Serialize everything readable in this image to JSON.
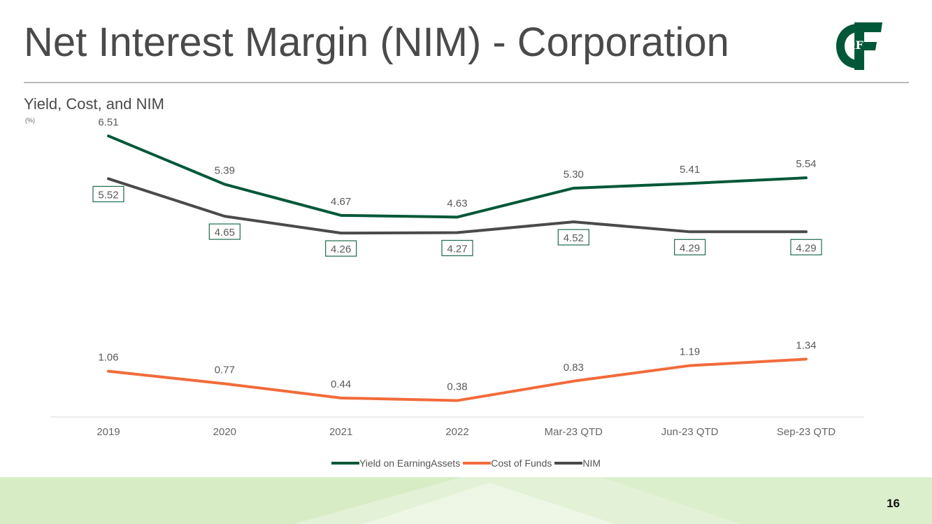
{
  "slide": {
    "title": "Net Interest Margin (NIM) - Corporation",
    "subtitle": "Yield, Cost, and NIM",
    "unit_label": "(%)",
    "page_number": "16",
    "logo_text": "&F",
    "logo_text_c": "C"
  },
  "colors": {
    "yield": "#005838",
    "cost": "#f26b3a",
    "nim": "#4a4a4a",
    "nim_label_border": "#1e6b4a",
    "title": "#4a4a4a"
  },
  "chart_data": {
    "type": "line",
    "title": "Yield, Cost, and NIM",
    "ylabel": "(%)",
    "xlabel": "",
    "categories": [
      "2019",
      "2020",
      "2021",
      "2022",
      "Mar-23 QTD",
      "Jun-23 QTD",
      "Sep-23 QTD"
    ],
    "series": [
      {
        "name": "Yield on EarningAssets",
        "key": "yield",
        "values": [
          6.51,
          5.39,
          4.67,
          4.63,
          5.3,
          5.41,
          5.54
        ],
        "labels": [
          "6.51",
          "5.39",
          "4.67",
          "4.63",
          "5.30",
          "5.41",
          "5.54"
        ]
      },
      {
        "name": "Cost of Funds",
        "key": "cost",
        "values": [
          1.06,
          0.77,
          0.44,
          0.38,
          0.83,
          1.19,
          1.34
        ],
        "labels": [
          "1.06",
          "0.77",
          "0.44",
          "0.38",
          "0.83",
          "1.19",
          "1.34"
        ]
      },
      {
        "name": "NIM",
        "key": "nim",
        "values": [
          5.52,
          4.65,
          4.26,
          4.27,
          4.52,
          4.29,
          4.29
        ],
        "labels": [
          "5.52",
          "4.65",
          "4.26",
          "4.27",
          "4.52",
          "4.29",
          "4.29"
        ]
      }
    ],
    "ylim": [
      0,
      6.8
    ],
    "grid": false,
    "legend_position": "bottom"
  }
}
